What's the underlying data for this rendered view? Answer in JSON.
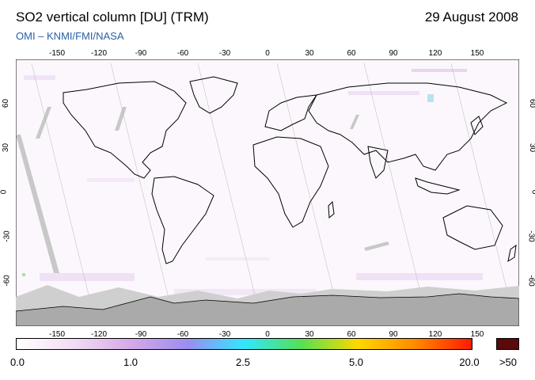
{
  "header": {
    "title": "SO2 vertical column [DU] (TRM)",
    "date": "29 August 2008",
    "credit": "OMI  –  KNMI/FMI/NASA"
  },
  "axes": {
    "lon_ticks": [
      "-150",
      "-120",
      "-90",
      "-60",
      "-30",
      "0",
      "30",
      "60",
      "90",
      "120",
      "150"
    ],
    "lat_ticks": [
      "60",
      "30",
      "0",
      "-30",
      "-60"
    ]
  },
  "colorbar": {
    "labels": [
      "0.0",
      "1.0",
      "2.5",
      "5.0",
      "20.0"
    ],
    "over_label": ">50",
    "colors": [
      "#ffffff",
      "#f2dcf4",
      "#d6a9e8",
      "#9b8df0",
      "#33e6ff",
      "#55e055",
      "#ffd800",
      "#ff8a00",
      "#ff1a00",
      "#5a0a0a"
    ],
    "over_color": "#5a0a0a"
  },
  "map": {
    "ocean_color": "#fbf7fc",
    "land_outline": "#000000",
    "no_data_color": "#c8c8c8",
    "antarctica_color": "#aaaaaa"
  }
}
